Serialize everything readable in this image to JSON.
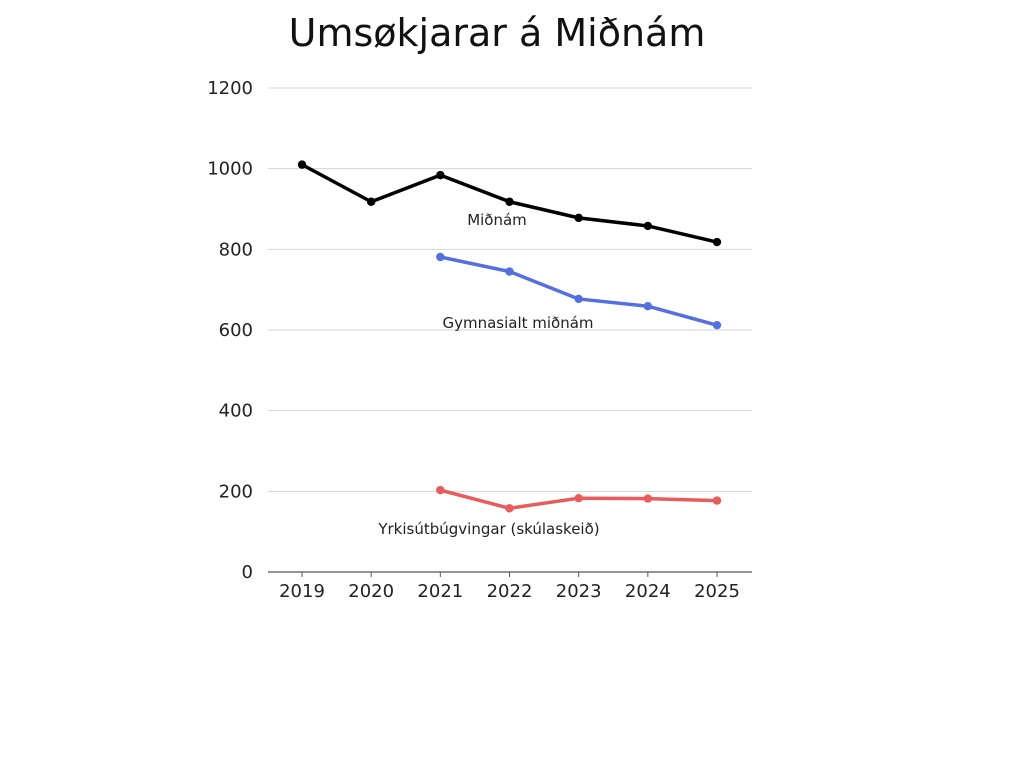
{
  "chart_data": {
    "type": "line",
    "title": "Umsøkjarar á Miðnám",
    "xlabel": "",
    "ylabel": "",
    "x": [
      "2019",
      "2020",
      "2021",
      "2022",
      "2023",
      "2024",
      "2025"
    ],
    "ylim": [
      0,
      1200
    ],
    "yticks": [
      0,
      200,
      400,
      600,
      800,
      1000,
      1200
    ],
    "grid": true,
    "legend": "none",
    "series": [
      {
        "name": "Miðnám",
        "color": "#000000",
        "values": [
          1010,
          918,
          984,
          918,
          878,
          858,
          818
        ]
      },
      {
        "name": "Gymnasialt miðnám",
        "color": "#5470e0",
        "values": [
          null,
          null,
          781,
          745,
          677,
          659,
          612
        ]
      },
      {
        "name": "Yrkisútbúgvingar (skúlaskeið)",
        "color": "#e85c5c",
        "values": [
          null,
          null,
          203,
          158,
          183,
          182,
          177
        ]
      }
    ]
  }
}
